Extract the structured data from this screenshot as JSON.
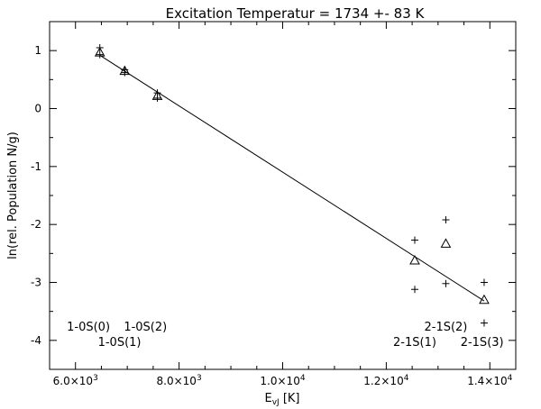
{
  "chart_data": {
    "type": "scatter",
    "title": "Excitation Temperatur = 1734 +- 83 K",
    "xlabel": "E",
    "xlabel_sub": "vJ",
    "xlabel_unit": " [K]",
    "ylabel": "ln(rel. Population N/g)",
    "xlim": [
      5500,
      14500
    ],
    "ylim": [
      -4.5,
      1.5
    ],
    "x_ticks": [
      {
        "value": 6000,
        "mant": "6.0×10",
        "exp": "3"
      },
      {
        "value": 8000,
        "mant": "8.0×10",
        "exp": "3"
      },
      {
        "value": 10000,
        "mant": "1.0×10",
        "exp": "4"
      },
      {
        "value": 12000,
        "mant": "1.2×10",
        "exp": "4"
      },
      {
        "value": 14000,
        "mant": "1.4×10",
        "exp": "4"
      }
    ],
    "y_ticks": [
      {
        "value": 1,
        "label": "1"
      },
      {
        "value": 0,
        "label": "0"
      },
      {
        "value": -1,
        "label": "-1"
      },
      {
        "value": -2,
        "label": "-2"
      },
      {
        "value": -3,
        "label": "-3"
      },
      {
        "value": -4,
        "label": "-4"
      }
    ],
    "series": [
      {
        "marker": "plus",
        "points": [
          {
            "x": 6470,
            "y": 1.05
          },
          {
            "x": 6470,
            "y": 0.93
          },
          {
            "x": 6950,
            "y": 0.67
          },
          {
            "x": 6950,
            "y": 0.62
          },
          {
            "x": 7580,
            "y": 0.27
          },
          {
            "x": 7580,
            "y": 0.18
          },
          {
            "x": 12550,
            "y": -2.27
          },
          {
            "x": 12550,
            "y": -3.12
          },
          {
            "x": 13150,
            "y": -1.92
          },
          {
            "x": 13150,
            "y": -3.02
          },
          {
            "x": 13890,
            "y": -3.0
          },
          {
            "x": 13890,
            "y": -3.7
          }
        ]
      },
      {
        "marker": "triangle",
        "points": [
          {
            "x": 6470,
            "y": 0.97
          },
          {
            "x": 6950,
            "y": 0.65
          },
          {
            "x": 7580,
            "y": 0.22
          },
          {
            "x": 12550,
            "y": -2.62
          },
          {
            "x": 13150,
            "y": -2.33
          },
          {
            "x": 13890,
            "y": -3.3
          }
        ]
      }
    ],
    "fit_line": {
      "x": [
        6470,
        13890
      ],
      "y": [
        0.92,
        -3.32
      ]
    },
    "annotations": [
      {
        "text": "1-0S(0)",
        "x": 6250,
        "y": -3.77
      },
      {
        "text": "1-0S(2)",
        "x": 7350,
        "y": -3.77
      },
      {
        "text": "1-0S(1)",
        "x": 6850,
        "y": -4.03
      },
      {
        "text": "2-1S(2)",
        "x": 13150,
        "y": -3.77
      },
      {
        "text": "2-1S(1)",
        "x": 12550,
        "y": -4.03
      },
      {
        "text": "2-1S(3)",
        "x": 13850,
        "y": -4.03
      }
    ]
  }
}
